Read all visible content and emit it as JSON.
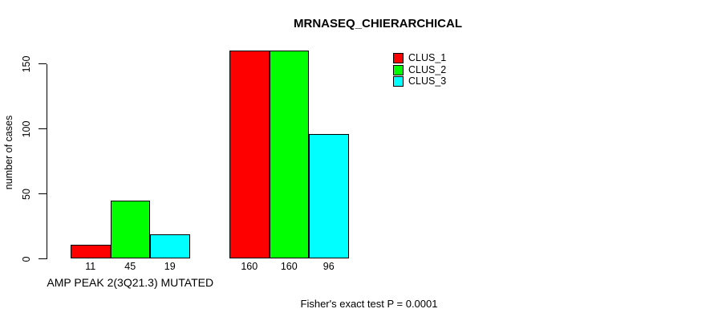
{
  "chart_data": {
    "type": "bar",
    "title": "MRNASEQ_CHIERARCHICAL",
    "ylabel": "number of cases",
    "xlabel": "",
    "categories": [
      "AMP PEAK 2(3Q21.3) MUTATED",
      ""
    ],
    "series": [
      {
        "name": "CLUS_1",
        "color": "#FF0000",
        "values": [
          11,
          160
        ]
      },
      {
        "name": "CLUS_2",
        "color": "#00FF00",
        "values": [
          45,
          160
        ]
      },
      {
        "name": "CLUS_3",
        "color": "#00FFFF",
        "values": [
          19,
          96
        ]
      }
    ],
    "show_bar_values": true,
    "yticks": [
      0,
      50,
      100,
      150
    ],
    "ylim": [
      0,
      165
    ],
    "grid": false,
    "legend_position": "top-right",
    "annotation": "Fisher's exact test P = 0.0001"
  }
}
